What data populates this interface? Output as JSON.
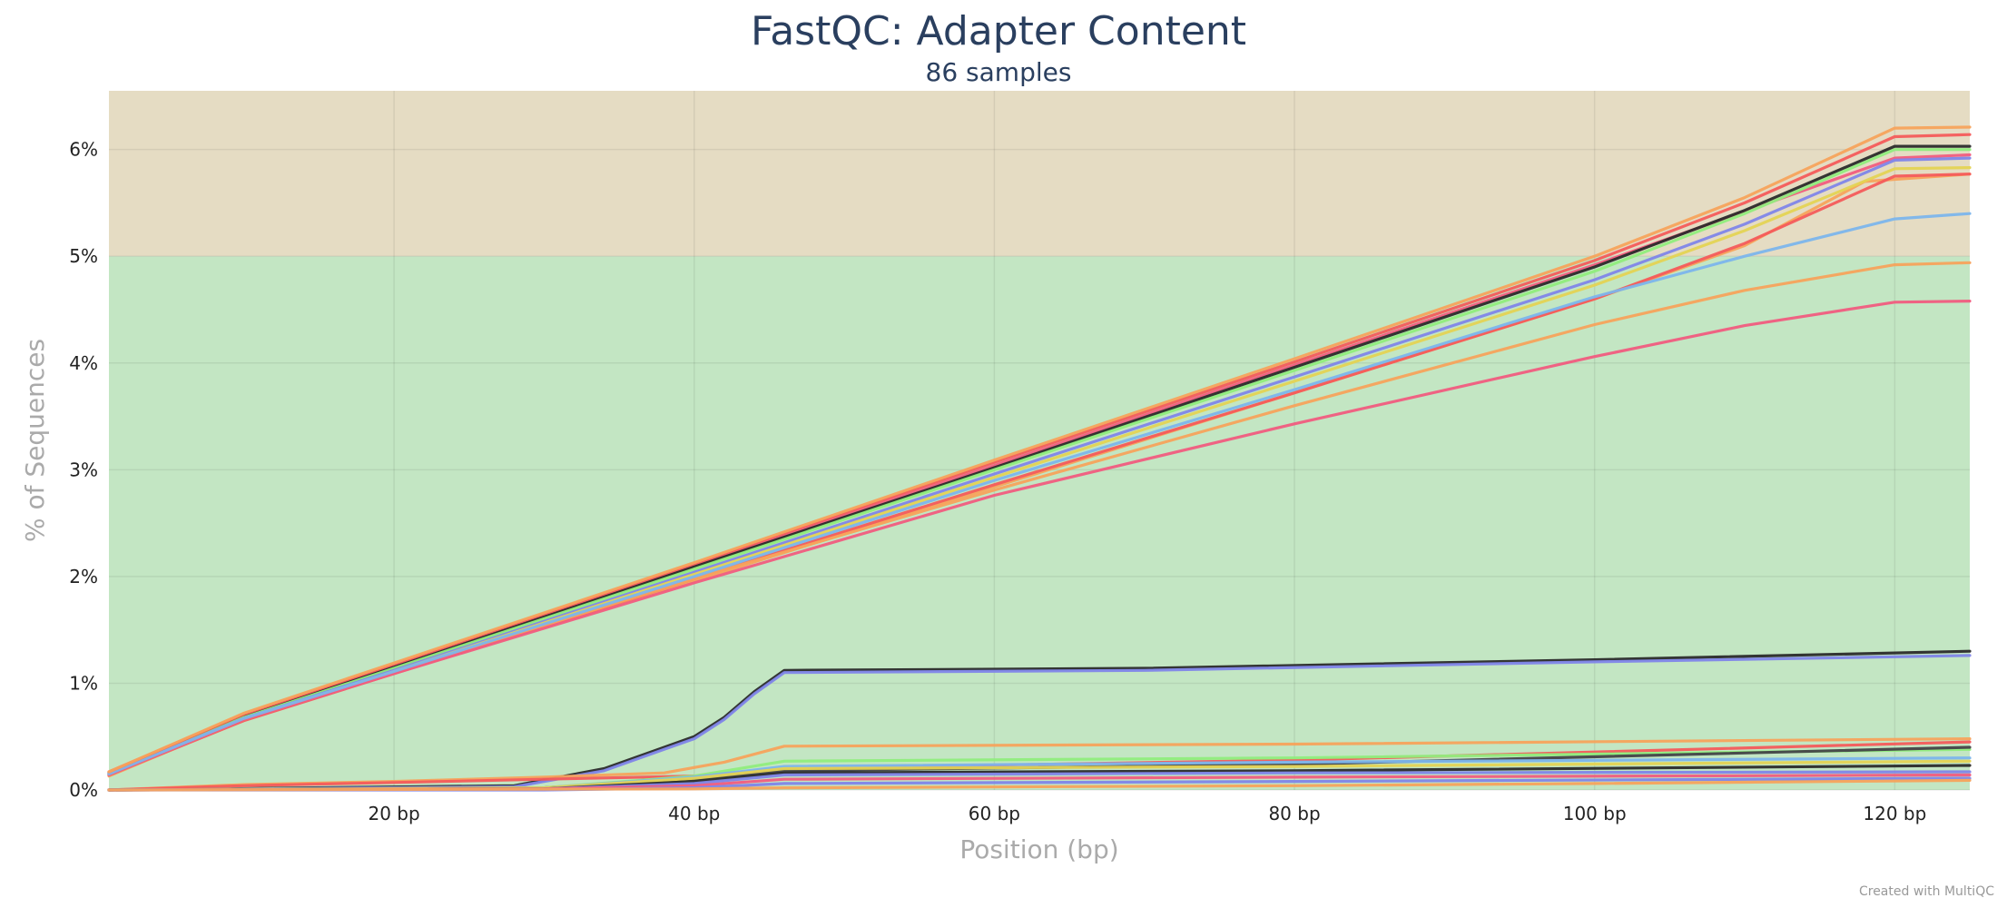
{
  "chart_data": {
    "type": "line",
    "title": "FastQC: Adapter Content",
    "subtitle": "86 samples",
    "xlabel": "Position (bp)",
    "ylabel": "% of Sequences",
    "xlim": [
      1,
      125
    ],
    "ylim": [
      0,
      6.55
    ],
    "x_ticks": [
      20,
      40,
      60,
      80,
      100,
      120
    ],
    "x_tick_labels": [
      "20 bp",
      "40 bp",
      "60 bp",
      "80 bp",
      "100 bp",
      "120 bp"
    ],
    "y_ticks": [
      0,
      1,
      2,
      3,
      4,
      5,
      6
    ],
    "y_tick_labels": [
      "0%",
      "1%",
      "2%",
      "3%",
      "4%",
      "5%",
      "6%"
    ],
    "grid": true,
    "bands": [
      {
        "from": 0,
        "to": 5,
        "color": "#c3e6c3",
        "status": "pass"
      },
      {
        "from": 5,
        "to": 6.55,
        "color": "#e5dcc3",
        "status": "warn"
      }
    ],
    "series": [
      {
        "color": "#f7a35c",
        "values": [
          [
            1,
            0.13
          ],
          [
            10,
            0.66
          ],
          [
            20,
            1.1
          ],
          [
            40,
            1.96
          ],
          [
            60,
            2.84
          ],
          [
            80,
            3.72
          ],
          [
            100,
            4.6
          ],
          [
            110,
            5.1
          ],
          [
            118,
            5.7
          ],
          [
            125,
            5.77
          ]
        ]
      },
      {
        "color": "#f15c80",
        "values": [
          [
            1,
            0.16
          ],
          [
            10,
            0.7
          ],
          [
            20,
            1.17
          ],
          [
            40,
            2.1
          ],
          [
            60,
            3.04
          ],
          [
            80,
            3.98
          ],
          [
            100,
            4.92
          ],
          [
            110,
            5.42
          ],
          [
            120,
            5.92
          ],
          [
            125,
            5.95
          ]
        ]
      },
      {
        "color": "#2b2b2b",
        "values": [
          [
            1,
            0.16
          ],
          [
            10,
            0.69
          ],
          [
            20,
            1.15
          ],
          [
            40,
            2.09
          ],
          [
            60,
            3.02
          ],
          [
            80,
            3.96
          ],
          [
            100,
            4.9
          ],
          [
            110,
            5.43
          ],
          [
            120,
            6.03
          ],
          [
            125,
            6.03
          ]
        ]
      },
      {
        "color": "#90ed7d",
        "values": [
          [
            1,
            0.15
          ],
          [
            10,
            0.68
          ],
          [
            20,
            1.14
          ],
          [
            40,
            2.07
          ],
          [
            60,
            3.0
          ],
          [
            80,
            3.93
          ],
          [
            100,
            4.86
          ],
          [
            110,
            5.4
          ],
          [
            120,
            6.0
          ],
          [
            125,
            6.0
          ]
        ]
      },
      {
        "color": "#8085e9",
        "values": [
          [
            1,
            0.15
          ],
          [
            10,
            0.67
          ],
          [
            20,
            1.12
          ],
          [
            40,
            2.04
          ],
          [
            60,
            2.96
          ],
          [
            80,
            3.87
          ],
          [
            100,
            4.78
          ],
          [
            110,
            5.3
          ],
          [
            120,
            5.9
          ],
          [
            125,
            5.92
          ]
        ]
      },
      {
        "color": "#e4d354",
        "values": [
          [
            1,
            0.14
          ],
          [
            10,
            0.66
          ],
          [
            20,
            1.11
          ],
          [
            40,
            2.02
          ],
          [
            60,
            2.93
          ],
          [
            80,
            3.83
          ],
          [
            100,
            4.73
          ],
          [
            110,
            5.24
          ],
          [
            120,
            5.82
          ],
          [
            125,
            5.83
          ]
        ]
      },
      {
        "color": "#f45b5b",
        "values": [
          [
            1,
            0.14
          ],
          [
            10,
            0.65
          ],
          [
            20,
            1.09
          ],
          [
            40,
            1.98
          ],
          [
            60,
            2.86
          ],
          [
            80,
            3.72
          ],
          [
            100,
            4.6
          ],
          [
            110,
            5.12
          ],
          [
            120,
            5.75
          ],
          [
            125,
            5.77
          ]
        ]
      },
      {
        "color": "#f7a35c",
        "values": [
          [
            1,
            0.14
          ],
          [
            10,
            0.66
          ],
          [
            20,
            1.1
          ],
          [
            40,
            1.98
          ],
          [
            60,
            2.81
          ],
          [
            80,
            3.6
          ],
          [
            100,
            4.36
          ],
          [
            110,
            4.68
          ],
          [
            120,
            4.92
          ],
          [
            125,
            4.94
          ]
        ]
      },
      {
        "color": "#f15c80",
        "values": [
          [
            1,
            0.14
          ],
          [
            10,
            0.66
          ],
          [
            20,
            1.09
          ],
          [
            40,
            1.94
          ],
          [
            60,
            2.76
          ],
          [
            80,
            3.43
          ],
          [
            100,
            4.06
          ],
          [
            110,
            4.35
          ],
          [
            120,
            4.57
          ],
          [
            125,
            4.58
          ]
        ]
      },
      {
        "color": "#7cb5ec",
        "values": [
          [
            1,
            0.15
          ],
          [
            10,
            0.67
          ],
          [
            20,
            1.11
          ],
          [
            40,
            2.0
          ],
          [
            60,
            2.9
          ],
          [
            80,
            3.75
          ],
          [
            100,
            4.62
          ],
          [
            110,
            5.0
          ],
          [
            120,
            5.35
          ],
          [
            125,
            5.4
          ]
        ]
      },
      {
        "color": "#f45b5b",
        "values": [
          [
            1,
            0.17
          ],
          [
            10,
            0.71
          ],
          [
            20,
            1.18
          ],
          [
            40,
            2.12
          ],
          [
            60,
            3.07
          ],
          [
            80,
            4.01
          ],
          [
            100,
            4.96
          ],
          [
            110,
            5.5
          ],
          [
            120,
            6.12
          ],
          [
            125,
            6.14
          ]
        ]
      },
      {
        "color": "#f7a35c",
        "values": [
          [
            1,
            0.17
          ],
          [
            10,
            0.72
          ],
          [
            20,
            1.19
          ],
          [
            40,
            2.13
          ],
          [
            60,
            3.09
          ],
          [
            80,
            4.04
          ],
          [
            100,
            5.0
          ],
          [
            110,
            5.55
          ],
          [
            120,
            6.2
          ],
          [
            125,
            6.21
          ]
        ]
      },
      {
        "color": "#2b2b2b",
        "values": [
          [
            1,
            0.0
          ],
          [
            28,
            0.04
          ],
          [
            34,
            0.2
          ],
          [
            38,
            0.4
          ],
          [
            40,
            0.5
          ],
          [
            42,
            0.68
          ],
          [
            44,
            0.92
          ],
          [
            46,
            1.12
          ],
          [
            70,
            1.14
          ],
          [
            100,
            1.22
          ],
          [
            125,
            1.3
          ]
        ]
      },
      {
        "color": "#8085e9",
        "values": [
          [
            1,
            0.0
          ],
          [
            28,
            0.03
          ],
          [
            34,
            0.18
          ],
          [
            38,
            0.38
          ],
          [
            40,
            0.48
          ],
          [
            42,
            0.66
          ],
          [
            44,
            0.9
          ],
          [
            46,
            1.1
          ],
          [
            70,
            1.12
          ],
          [
            100,
            1.2
          ],
          [
            125,
            1.26
          ]
        ]
      },
      {
        "color": "#f7a35c",
        "values": [
          [
            1,
            0.0
          ],
          [
            10,
            0.05
          ],
          [
            20,
            0.08
          ],
          [
            30,
            0.12
          ],
          [
            38,
            0.16
          ],
          [
            42,
            0.26
          ],
          [
            46,
            0.41
          ],
          [
            80,
            0.43
          ],
          [
            125,
            0.48
          ]
        ]
      },
      {
        "color": "#f45b5b",
        "values": [
          [
            1,
            0.0
          ],
          [
            10,
            0.04
          ],
          [
            20,
            0.07
          ],
          [
            30,
            0.1
          ],
          [
            40,
            0.13
          ],
          [
            46,
            0.2
          ],
          [
            80,
            0.28
          ],
          [
            125,
            0.45
          ]
        ]
      },
      {
        "color": "#90ed7d",
        "values": [
          [
            1,
            0.0
          ],
          [
            30,
            0.02
          ],
          [
            40,
            0.13
          ],
          [
            46,
            0.27
          ],
          [
            80,
            0.3
          ],
          [
            125,
            0.38
          ]
        ]
      },
      {
        "color": "#434348",
        "values": [
          [
            1,
            0.0
          ],
          [
            30,
            0.02
          ],
          [
            40,
            0.1
          ],
          [
            46,
            0.18
          ],
          [
            80,
            0.24
          ],
          [
            125,
            0.4
          ]
        ]
      },
      {
        "color": "#7cb5ec",
        "values": [
          [
            1,
            0.0
          ],
          [
            30,
            0.02
          ],
          [
            40,
            0.12
          ],
          [
            46,
            0.22
          ],
          [
            80,
            0.26
          ],
          [
            125,
            0.3
          ]
        ]
      },
      {
        "color": "#e4d354",
        "values": [
          [
            1,
            0.0
          ],
          [
            30,
            0.02
          ],
          [
            40,
            0.11
          ],
          [
            46,
            0.2
          ],
          [
            80,
            0.22
          ],
          [
            125,
            0.27
          ]
        ]
      },
      {
        "color": "#2b2b2b",
        "values": [
          [
            1,
            0.0
          ],
          [
            30,
            0.01
          ],
          [
            40,
            0.08
          ],
          [
            46,
            0.16
          ],
          [
            80,
            0.18
          ],
          [
            125,
            0.23
          ]
        ]
      },
      {
        "color": "#8085e9",
        "values": [
          [
            1,
            0.0
          ],
          [
            30,
            0.01
          ],
          [
            40,
            0.06
          ],
          [
            46,
            0.14
          ],
          [
            80,
            0.16
          ],
          [
            125,
            0.17
          ]
        ]
      },
      {
        "color": "#f15c80",
        "values": [
          [
            1,
            0.0
          ],
          [
            30,
            0.01
          ],
          [
            40,
            0.04
          ],
          [
            46,
            0.1
          ],
          [
            80,
            0.12
          ],
          [
            125,
            0.14
          ]
        ]
      },
      {
        "color": "#8085e9",
        "values": [
          [
            1,
            0.0
          ],
          [
            30,
            0.0
          ],
          [
            40,
            0.02
          ],
          [
            46,
            0.06
          ],
          [
            80,
            0.08
          ],
          [
            125,
            0.11
          ]
        ]
      },
      {
        "color": "#f7a35c",
        "values": [
          [
            1,
            0.0
          ],
          [
            40,
            0.01
          ],
          [
            46,
            0.02
          ],
          [
            80,
            0.04
          ],
          [
            100,
            0.06
          ],
          [
            125,
            0.09
          ]
        ]
      }
    ]
  },
  "footer": {
    "credit": "Created with MultiQC"
  }
}
